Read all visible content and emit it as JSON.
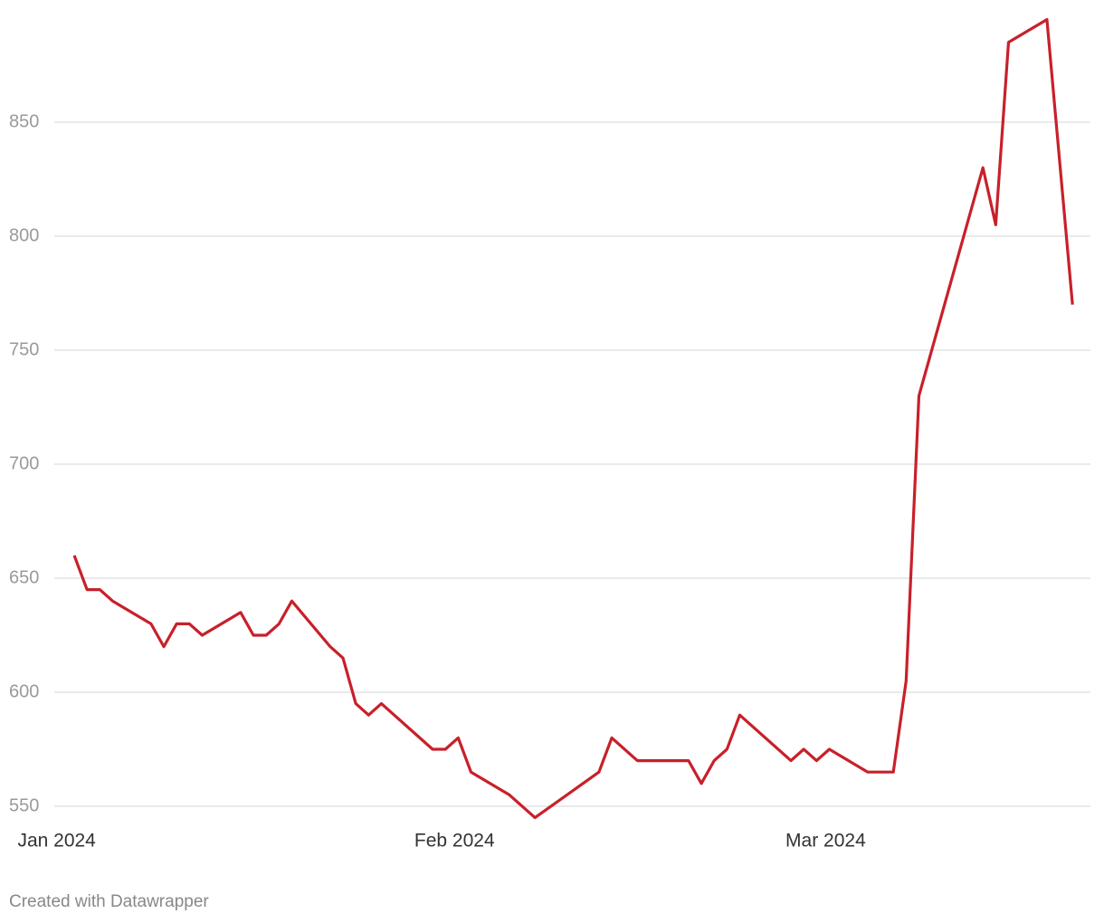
{
  "chart_data": {
    "type": "line",
    "x": [
      4,
      5,
      6,
      7,
      10,
      11,
      12,
      13,
      14,
      17,
      18,
      19,
      20,
      21,
      24,
      25,
      26,
      27,
      28,
      32,
      33,
      34,
      35,
      38,
      40,
      45,
      46,
      48,
      52,
      53,
      54,
      55,
      56,
      60,
      61,
      62,
      63,
      66,
      68,
      69,
      70,
      75,
      76,
      77,
      80,
      82
    ],
    "series": [
      {
        "color": "#c8202a",
        "values": [
          660,
          645,
          645,
          640,
          630,
          620,
          630,
          630,
          625,
          635,
          625,
          625,
          630,
          640,
          620,
          615,
          595,
          590,
          595,
          575,
          575,
          580,
          565,
          555,
          545,
          565,
          580,
          570,
          570,
          560,
          570,
          575,
          590,
          570,
          575,
          570,
          575,
          565,
          565,
          605,
          730,
          830,
          805,
          885,
          895,
          770
        ]
      }
    ],
    "xlim": [
      -1.8,
      83.4
    ],
    "xticks": [
      {
        "value": 0,
        "label": "Jan 2024"
      },
      {
        "value": 31,
        "label": "Feb 2024"
      },
      {
        "value": 60,
        "label": "Mar 2024"
      }
    ],
    "ylim": [
      540,
      905
    ],
    "yticks": [
      550,
      600,
      650,
      700,
      750,
      800,
      850
    ],
    "grid": true,
    "footer": "Created with Datawrapper"
  }
}
